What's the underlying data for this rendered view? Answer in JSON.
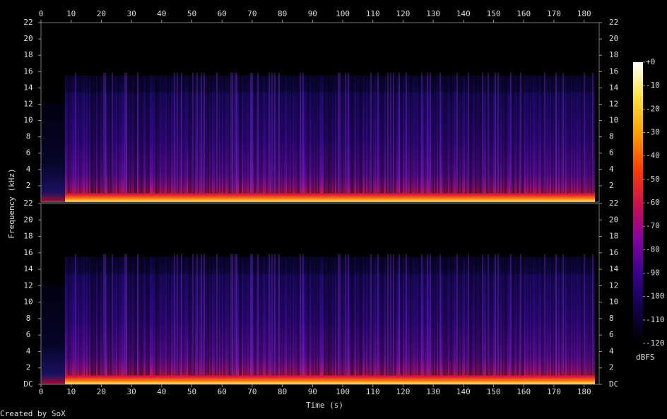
{
  "chart_data": {
    "type": "spectrogram",
    "x_label": "Time (s)",
    "y_label": "Frequency (kHz)",
    "credit": "Created by SoX",
    "xlim": [
      0,
      185
    ],
    "xticks": [
      0,
      10,
      20,
      30,
      40,
      50,
      60,
      70,
      80,
      90,
      100,
      110,
      120,
      130,
      140,
      150,
      160,
      170,
      180
    ],
    "channels": [
      {
        "ylim": [
          0,
          22
        ],
        "yticks": [
          2,
          4,
          6,
          8,
          10,
          12,
          14,
          16,
          18,
          20,
          22
        ]
      },
      {
        "ylim": [
          0,
          22
        ],
        "yticks": [
          {
            "value": 0,
            "label": "DC"
          },
          2,
          4,
          6,
          8,
          10,
          12,
          14,
          16,
          18,
          20,
          22
        ]
      }
    ],
    "colorbar": {
      "label": "dBFS",
      "lim": [
        -120,
        0
      ],
      "ticks": [
        {
          "value": 0,
          "label": "+0"
        },
        -10,
        -20,
        -30,
        -40,
        -50,
        -60,
        -70,
        -80,
        -90,
        -100,
        -110,
        -120
      ],
      "colormap": [
        "#000000",
        "#12004a",
        "#3a0090",
        "#8a00a0",
        "#d0104a",
        "#ff4000",
        "#ffa000",
        "#ffe040",
        "#ffffff"
      ]
    }
  }
}
